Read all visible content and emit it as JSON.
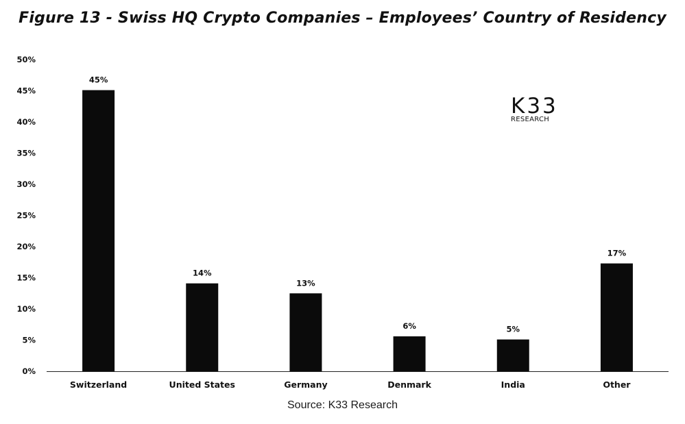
{
  "title": "Figure 13 - Swiss HQ Crypto Companies – Employees’ Country of Residency",
  "source": "Source: K33 Research",
  "logo": {
    "main": "K33",
    "sub": "RESEARCH"
  },
  "colors": {
    "bar": "#0b0b0b",
    "axis": "#222222",
    "text": "#111111"
  },
  "chart_data": {
    "type": "bar",
    "title": "Figure 13 - Swiss HQ Crypto Companies – Employees’ Country of Residency",
    "xlabel": "",
    "ylabel": "",
    "categories": [
      "Switzerland",
      "United States",
      "Germany",
      "Denmark",
      "India",
      "Other"
    ],
    "values": [
      45,
      14,
      13,
      6,
      5,
      17
    ],
    "bar_heights": [
      45.1,
      14.1,
      12.5,
      5.6,
      5.1,
      17.3
    ],
    "data_labels": [
      "45%",
      "14%",
      "13%",
      "6%",
      "5%",
      "17%"
    ],
    "ylim": [
      0,
      50
    ],
    "yticks": [
      0,
      5,
      10,
      15,
      20,
      25,
      30,
      35,
      40,
      45,
      50
    ],
    "ytick_labels": [
      "0%",
      "5%",
      "10%",
      "15%",
      "20%",
      "25%",
      "30%",
      "35%",
      "40%",
      "45%",
      "50%"
    ],
    "grid": false,
    "legend": "none"
  }
}
